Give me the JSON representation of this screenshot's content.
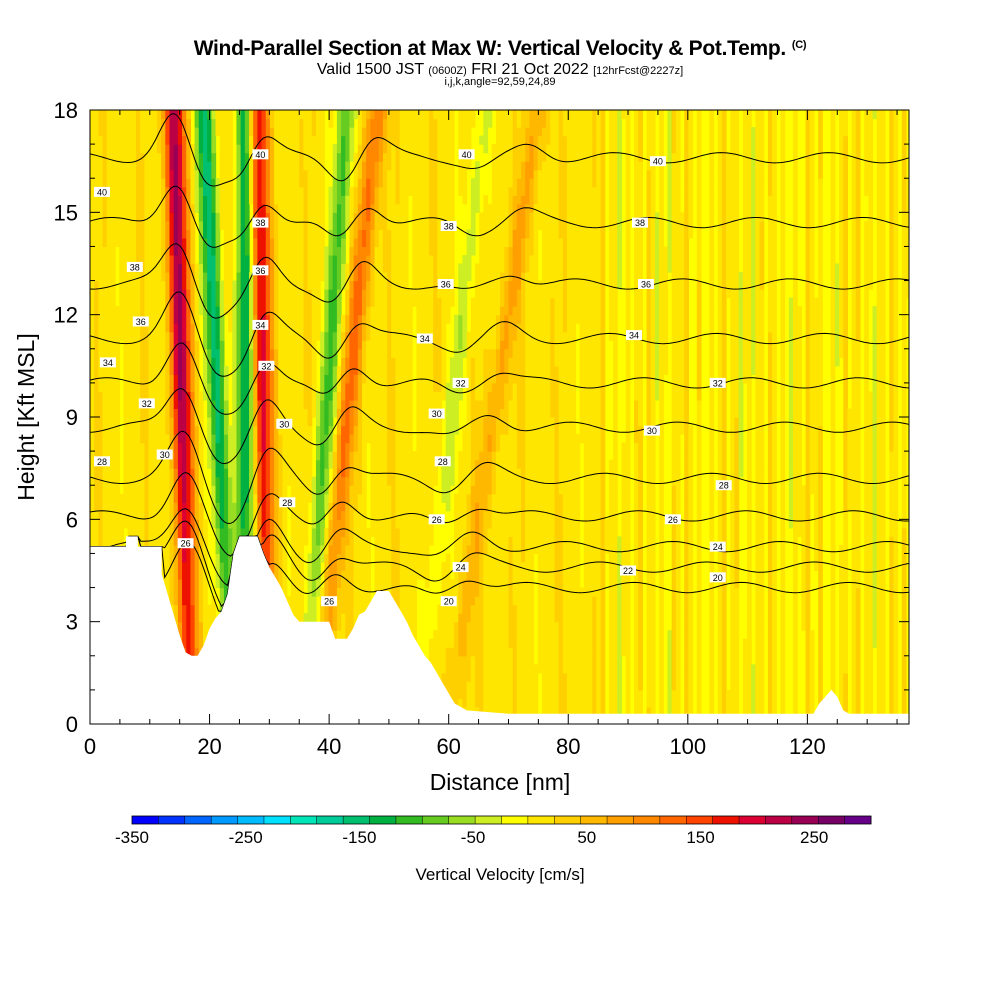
{
  "title": {
    "main": "Wind-Parallel Section at Max W: Vertical Velocity & Pot.Temp.",
    "copyright": "(C)",
    "valid_prefix": "Valid 1500 JST",
    "valid_utc": "(0600Z)",
    "valid_date": "FRI 21 Oct 2022",
    "forecast": "[12hrFcst@2227z]",
    "indices": "i,j,k,angle=92,59,24,89"
  },
  "chart_data": {
    "type": "heatmap",
    "xlabel": "Distance [nm]",
    "ylabel": "Height [Kft MSL]",
    "xlim": [
      0,
      137
    ],
    "ylim": [
      0,
      18
    ],
    "x_ticks": [
      "0",
      "20",
      "40",
      "60",
      "80",
      "100",
      "120"
    ],
    "y_ticks": [
      "0",
      "3",
      "6",
      "9",
      "12",
      "15",
      "18"
    ],
    "colorbar": {
      "title": "Vertical Velocity [cm/s]",
      "range": [
        -350,
        300
      ],
      "tick_labels": [
        "-350",
        "-250",
        "-150",
        "-50",
        "50",
        "150",
        "250"
      ],
      "colors": [
        "#0000ff",
        "#0033ff",
        "#0066ff",
        "#0099ff",
        "#00bbff",
        "#00e0ff",
        "#00e6b8",
        "#00cc99",
        "#00c070",
        "#00b040",
        "#33bb22",
        "#66cc22",
        "#99dd22",
        "#ccee22",
        "#ffff00",
        "#ffe600",
        "#ffd000",
        "#ffb800",
        "#ff9f00",
        "#ff8800",
        "#ff6600",
        "#ff4400",
        "#ee1100",
        "#dd0033",
        "#bb0044",
        "#990055",
        "#770066",
        "#660088"
      ]
    },
    "terrain_kft": [
      [
        0,
        5.2
      ],
      [
        6,
        5.2
      ],
      [
        6,
        5.5
      ],
      [
        8,
        5.5
      ],
      [
        8,
        5.2
      ],
      [
        12,
        5.2
      ],
      [
        12,
        4.4
      ],
      [
        13,
        3.8
      ],
      [
        14,
        3.2
      ],
      [
        15,
        2.6
      ],
      [
        16,
        2.1
      ],
      [
        17,
        2.0
      ],
      [
        18,
        2.0
      ],
      [
        19,
        2.3
      ],
      [
        20,
        2.8
      ],
      [
        21,
        3.1
      ],
      [
        22,
        3.3
      ],
      [
        23,
        3.8
      ],
      [
        24,
        5.0
      ],
      [
        25,
        5.5
      ],
      [
        28,
        5.5
      ],
      [
        29,
        5.0
      ],
      [
        30,
        4.6
      ],
      [
        31,
        4.3
      ],
      [
        32,
        4.0
      ],
      [
        33,
        3.6
      ],
      [
        34,
        3.2
      ],
      [
        35,
        3.0
      ],
      [
        40,
        3.0
      ],
      [
        41,
        2.5
      ],
      [
        43,
        2.5
      ],
      [
        44,
        2.8
      ],
      [
        45,
        3.2
      ],
      [
        46,
        3.3
      ],
      [
        47,
        3.6
      ],
      [
        48,
        3.9
      ],
      [
        50,
        3.9
      ],
      [
        51,
        3.6
      ],
      [
        52,
        3.3
      ],
      [
        53,
        3.0
      ],
      [
        54,
        2.6
      ],
      [
        55,
        2.3
      ],
      [
        56,
        2.0
      ],
      [
        57,
        1.8
      ],
      [
        58,
        1.5
      ],
      [
        59,
        1.2
      ],
      [
        60,
        0.9
      ],
      [
        61,
        0.6
      ],
      [
        63,
        0.4
      ],
      [
        70,
        0.3
      ],
      [
        121,
        0.3
      ],
      [
        122,
        0.6
      ],
      [
        123,
        0.8
      ],
      [
        124,
        1.0
      ],
      [
        125,
        0.8
      ],
      [
        126,
        0.4
      ],
      [
        127,
        0.3
      ],
      [
        137,
        0.3
      ]
    ],
    "updraft_bands": [
      {
        "x_top": 14,
        "x_bottom": 17,
        "w_max": 220
      },
      {
        "x_top": 28,
        "x_bottom": 30,
        "w_max": 180
      },
      {
        "x_top": 48,
        "x_bottom": 38,
        "w_max": 110
      },
      {
        "x_top": 75,
        "x_bottom": 60,
        "w_max": 60
      }
    ],
    "downdraft_bands": [
      {
        "x_top": 19,
        "x_bottom": 24,
        "w_min": -160
      },
      {
        "x_top": 26,
        "x_bottom": 26,
        "w_min": -150
      },
      {
        "x_top": 43,
        "x_bottom": 36,
        "w_min": -110
      },
      {
        "x_top": 66,
        "x_bottom": 55,
        "w_min": -50
      }
    ],
    "theta_levels": [
      20,
      22,
      24,
      26,
      28,
      30,
      32,
      34,
      36,
      38,
      40
    ],
    "theta_labels": [
      {
        "text": "40",
        "x": 2,
        "y": 15.6
      },
      {
        "text": "38",
        "x": 7.5,
        "y": 13.4
      },
      {
        "text": "36",
        "x": 8.5,
        "y": 11.8
      },
      {
        "text": "34",
        "x": 3,
        "y": 10.6
      },
      {
        "text": "32",
        "x": 9.5,
        "y": 9.4
      },
      {
        "text": "28",
        "x": 2,
        "y": 7.7
      },
      {
        "text": "30",
        "x": 12.5,
        "y": 7.9
      },
      {
        "text": "26",
        "x": 16,
        "y": 5.3
      },
      {
        "text": "40",
        "x": 28.5,
        "y": 16.7
      },
      {
        "text": "38",
        "x": 28.5,
        "y": 14.7
      },
      {
        "text": "36",
        "x": 28.5,
        "y": 13.3
      },
      {
        "text": "34",
        "x": 28.5,
        "y": 11.7
      },
      {
        "text": "32",
        "x": 29.5,
        "y": 10.5
      },
      {
        "text": "30",
        "x": 32.5,
        "y": 8.8
      },
      {
        "text": "28",
        "x": 33,
        "y": 6.5
      },
      {
        "text": "26",
        "x": 40,
        "y": 3.6
      },
      {
        "text": "40",
        "x": 63,
        "y": 16.7
      },
      {
        "text": "38",
        "x": 60,
        "y": 14.6
      },
      {
        "text": "36",
        "x": 59.5,
        "y": 12.9
      },
      {
        "text": "34",
        "x": 56,
        "y": 11.3
      },
      {
        "text": "32",
        "x": 62,
        "y": 10.0
      },
      {
        "text": "30",
        "x": 58,
        "y": 9.1
      },
      {
        "text": "28",
        "x": 59,
        "y": 7.7
      },
      {
        "text": "26",
        "x": 58,
        "y": 6.0
      },
      {
        "text": "24",
        "x": 62,
        "y": 4.6
      },
      {
        "text": "20",
        "x": 60,
        "y": 3.6
      },
      {
        "text": "40",
        "x": 95,
        "y": 16.5
      },
      {
        "text": "38",
        "x": 92,
        "y": 14.7
      },
      {
        "text": "36",
        "x": 93,
        "y": 12.9
      },
      {
        "text": "34",
        "x": 91,
        "y": 11.4
      },
      {
        "text": "32",
        "x": 105,
        "y": 10.0
      },
      {
        "text": "30",
        "x": 94,
        "y": 8.6
      },
      {
        "text": "28",
        "x": 106,
        "y": 7.0
      },
      {
        "text": "26",
        "x": 97.5,
        "y": 6.0
      },
      {
        "text": "24",
        "x": 105,
        "y": 5.2
      },
      {
        "text": "22",
        "x": 90,
        "y": 4.5
      },
      {
        "text": "20",
        "x": 105,
        "y": 4.3
      }
    ]
  }
}
